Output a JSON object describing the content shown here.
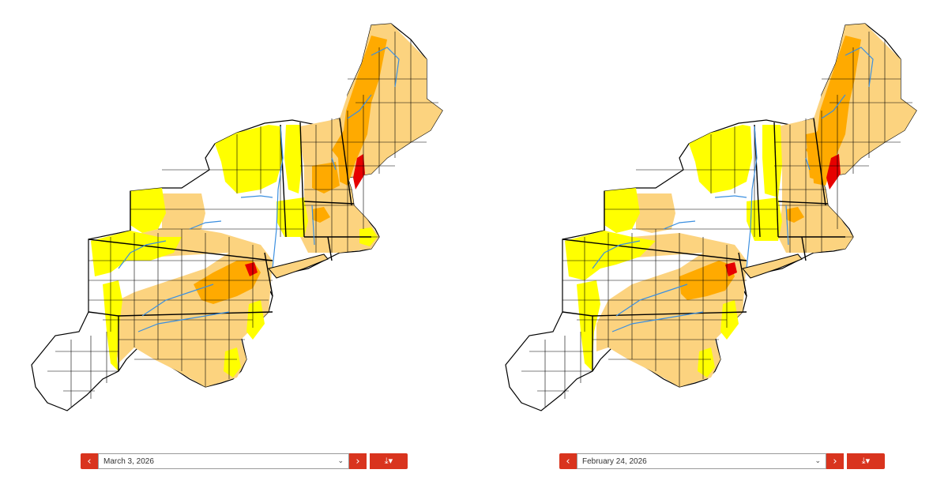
{
  "palette": {
    "none": "#ffffff",
    "d0": "#ffff00",
    "d1": "#fcd37f",
    "d2": "#ffaa00",
    "d3": "#e60000",
    "water": "#3b8fe0",
    "accent": "#d9341e"
  },
  "maps": [
    {
      "date_label": "March 3, 2026",
      "prev_icon": "chevron-left-icon",
      "next_icon": "chevron-right-icon",
      "download_icon": "download-icon"
    },
    {
      "date_label": "February 24, 2026",
      "prev_icon": "chevron-left-icon",
      "next_icon": "chevron-right-icon",
      "download_icon": "download-icon"
    }
  ],
  "glyphs": {
    "prev": "‹",
    "next": "›",
    "download": "⤓▾",
    "dropdown": "⌄"
  }
}
